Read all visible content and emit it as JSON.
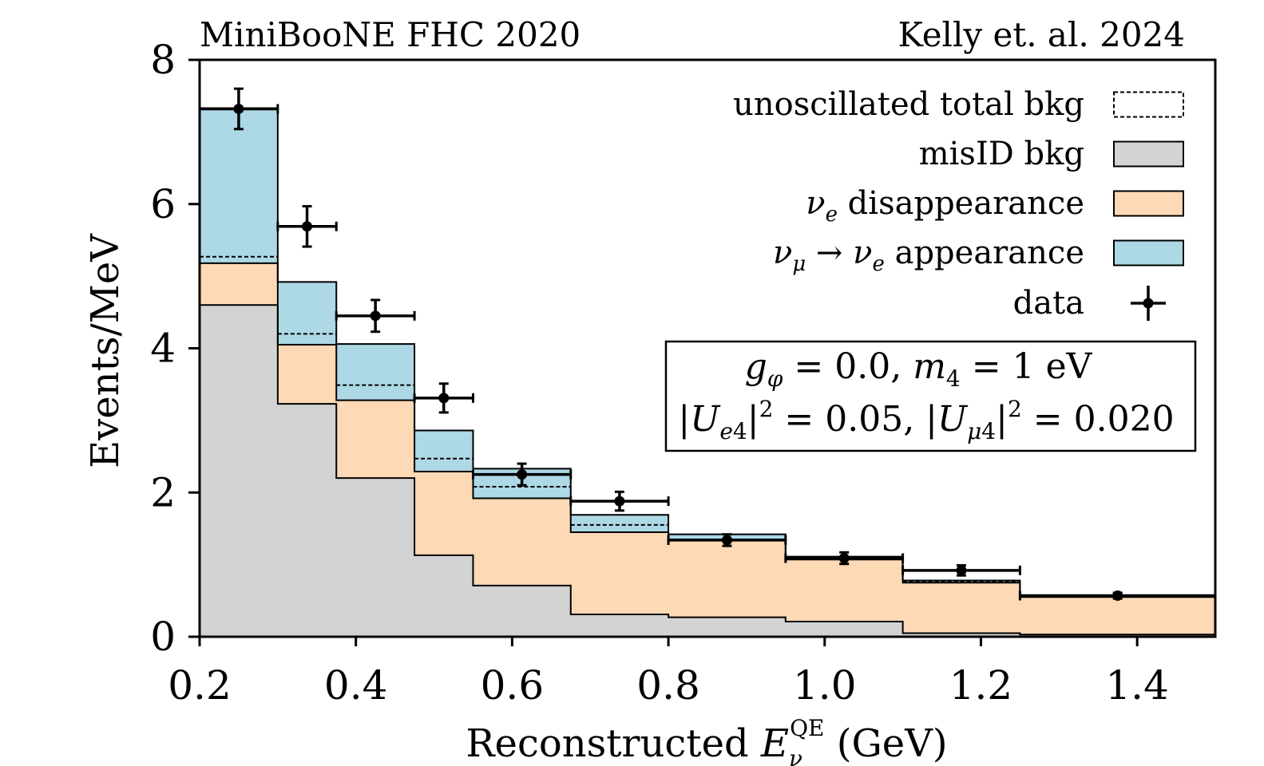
{
  "chart_data": {
    "type": "bar",
    "title_left": "MiniBooNE FHC 2020",
    "title_right": "Kelly et. al. 2024",
    "xlabel": "Reconstructed E_ν^QE (GeV)",
    "xlabel_parts": {
      "prefix": "Reconstructed ",
      "var": "E",
      "sub": "ν",
      "sup": "QE",
      "suffix": " (GeV)"
    },
    "ylabel": "Events/MeV",
    "xlim": [
      0.2,
      1.5
    ],
    "ylim": [
      0,
      8
    ],
    "xticks": [
      "0.2",
      "0.4",
      "0.6",
      "0.8",
      "1.0",
      "1.2",
      "1.4"
    ],
    "xtick_values": [
      0.2,
      0.4,
      0.6,
      0.8,
      1.0,
      1.2,
      1.4
    ],
    "yticks": [
      "0",
      "2",
      "4",
      "6",
      "8"
    ],
    "ytick_values": [
      0,
      2,
      4,
      6,
      8
    ],
    "bin_edges": [
      0.2,
      0.3,
      0.375,
      0.475,
      0.55,
      0.675,
      0.8,
      0.95,
      1.1,
      1.25,
      1.5
    ],
    "series": [
      {
        "name": "misID bkg",
        "color": "#d3d3d3",
        "values": [
          4.6,
          3.23,
          2.2,
          1.13,
          0.71,
          0.31,
          0.27,
          0.21,
          0.05,
          0.03
        ]
      },
      {
        "name": "ν_e disappearance",
        "color": "#fdd9b5",
        "values": [
          5.18,
          4.05,
          3.28,
          2.29,
          1.92,
          1.45,
          1.35,
          1.07,
          0.75,
          0.55
        ]
      },
      {
        "name": "ν_μ → ν_e appearance",
        "color": "#add8e6",
        "values": [
          7.33,
          4.92,
          4.06,
          2.86,
          2.33,
          1.69,
          1.42,
          1.11,
          0.78,
          0.57
        ]
      },
      {
        "name": "unoscillated total bkg",
        "style": "dashed",
        "values": [
          5.27,
          4.2,
          3.49,
          2.47,
          2.08,
          1.55,
          1.35,
          1.08,
          0.76,
          0.56
        ]
      }
    ],
    "data": {
      "name": "data",
      "x": [
        0.25,
        0.3375,
        0.425,
        0.5125,
        0.6125,
        0.7375,
        0.875,
        1.025,
        1.175,
        1.375
      ],
      "y": [
        7.32,
        5.69,
        4.45,
        3.31,
        2.25,
        1.88,
        1.34,
        1.09,
        0.92,
        0.57
      ],
      "yerr": [
        0.28,
        0.28,
        0.22,
        0.2,
        0.15,
        0.13,
        0.08,
        0.08,
        0.07,
        0.04
      ]
    },
    "legend": {
      "placement": "top-right",
      "entries": [
        {
          "label": "unoscillated total bkg",
          "kind": "dashed-box"
        },
        {
          "label": "misID bkg",
          "kind": "fill",
          "color": "#d3d3d3"
        },
        {
          "label": "ν_e disappearance",
          "kind": "fill",
          "color": "#fdd9b5"
        },
        {
          "label": "ν_μ → ν_e appearance",
          "kind": "fill",
          "color": "#add8e6"
        },
        {
          "label": "data",
          "kind": "errorbar"
        }
      ]
    },
    "annotation": {
      "line1": "g_φ = 0.0, m_4 = 1 eV",
      "line2": "|U_e4|² = 0.05, |U_μ4|² = 0.020"
    },
    "grid": false
  }
}
